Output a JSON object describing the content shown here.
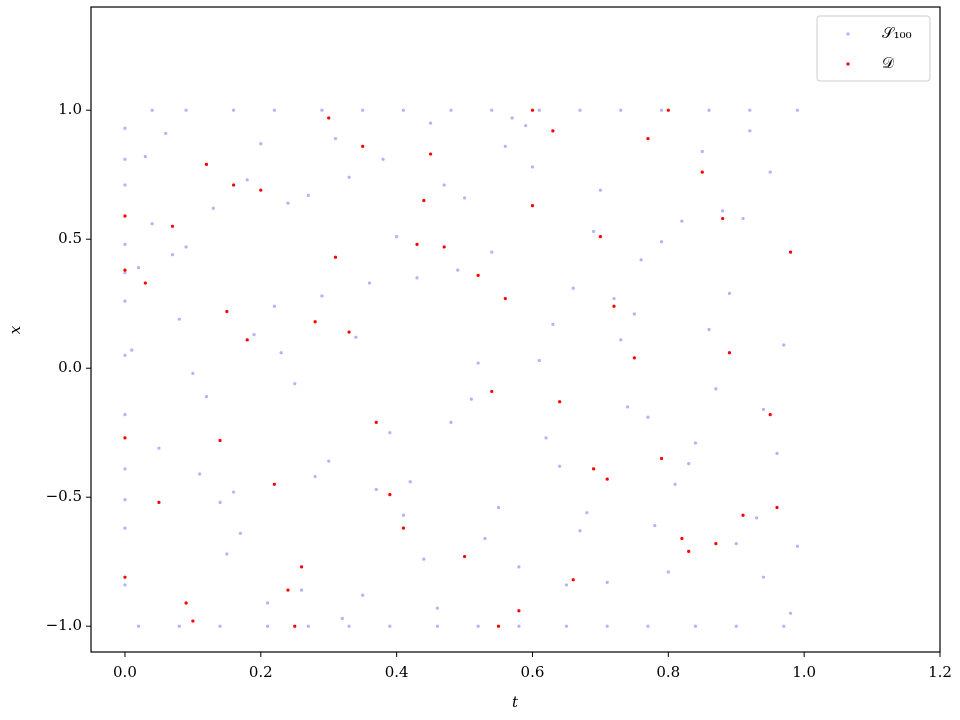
{
  "chart_data": {
    "type": "scatter",
    "xlabel": "t",
    "ylabel": "x",
    "xlim": [
      -0.05,
      1.2
    ],
    "ylim": [
      -1.1,
      1.4
    ],
    "xticks": [
      {
        "value": 0,
        "label": "0.0"
      },
      0.2,
      0.4,
      0.6,
      0.8,
      {
        "value": 1,
        "label": "1.0"
      },
      1.2
    ],
    "yticks": [
      {
        "value": -1,
        "label": "−1.0"
      },
      {
        "value": -0.5,
        "label": "−0.5"
      },
      {
        "value": 0,
        "label": "0.0"
      },
      0.5,
      {
        "value": 1,
        "label": "1.0"
      }
    ],
    "legend": "upper right",
    "series": [
      {
        "name": "𝒮₁₀₀",
        "color": "#0000ff",
        "alpha": 0.3,
        "x": [
          0.03,
          0.11,
          0.19,
          0.27,
          0.35,
          0.43,
          0.51,
          0.59,
          0.67,
          0.75,
          0.83,
          0.91,
          0.98,
          0.07,
          0.15,
          0.23,
          0.31,
          0.39,
          0.47,
          0.55,
          0.63,
          0.71,
          0.79,
          0.87,
          0.95,
          0.05,
          0.13,
          0.21,
          0.29,
          0.37,
          0.45,
          0.53,
          0.61,
          0.69,
          0.77,
          0.85,
          0.93,
          0.02,
          0.1,
          0.18,
          0.26,
          0.34,
          0.42,
          0.5,
          0.58,
          0.66,
          0.74,
          0.82,
          0.9,
          0.97,
          0.06,
          0.14,
          0.22,
          0.3,
          0.38,
          0.46,
          0.54,
          0.62,
          0.7,
          0.78,
          0.86,
          0.94,
          0.04,
          0.12,
          0.2,
          0.28,
          0.36,
          0.44,
          0.52,
          0.6,
          0.68,
          0.76,
          0.84,
          0.92,
          0.99,
          0.08,
          0.16,
          0.24,
          0.32,
          0.4,
          0.48,
          0.56,
          0.64,
          0.72,
          0.8,
          0.88,
          0.96,
          0.01,
          0.09,
          0.17,
          0.25,
          0.33,
          0.41,
          0.49,
          0.57,
          0.65,
          0.73,
          0.81,
          0.89,
          0.94,
          0.04,
          0.09,
          0.16,
          0.22,
          0.29,
          0.35,
          0.41,
          0.48,
          0.54,
          0.61,
          0.67,
          0.73,
          0.79,
          0.86,
          0.92,
          0.99,
          0.02,
          0.08,
          0.14,
          0.21,
          0.27,
          0.33,
          0.39,
          0.46,
          0.52,
          0.58,
          0.65,
          0.71,
          0.77,
          0.84,
          0.9,
          0.97,
          0,
          0,
          0,
          0,
          0,
          0,
          0,
          0,
          0,
          0,
          0,
          0
        ],
        "y": [
          0.82,
          -0.41,
          0.13,
          0.67,
          -0.88,
          0.35,
          -0.12,
          0.94,
          -0.63,
          0.21,
          -0.37,
          0.58,
          -0.95,
          0.44,
          -0.72,
          0.06,
          0.89,
          -0.25,
          0.71,
          -0.54,
          0.17,
          -0.83,
          0.49,
          -0.08,
          0.76,
          -0.31,
          0.62,
          -0.91,
          0.28,
          -0.47,
          0.95,
          -0.66,
          0.03,
          0.53,
          -0.19,
          0.84,
          -0.58,
          0.39,
          -0.02,
          0.73,
          -0.86,
          0.12,
          -0.44,
          0.66,
          -0.77,
          0.31,
          -0.15,
          0.57,
          -0.68,
          0.09,
          0.91,
          -0.52,
          0.24,
          -0.36,
          0.81,
          -0.93,
          0.45,
          -0.27,
          0.69,
          -0.61,
          0.15,
          -0.81,
          0.56,
          -0.11,
          0.87,
          -0.42,
          0.33,
          -0.74,
          0.02,
          0.78,
          -0.56,
          0.42,
          -0.29,
          0.92,
          -0.69,
          0.19,
          -0.48,
          0.64,
          -0.97,
          0.51,
          -0.21,
          0.86,
          -0.38,
          0.27,
          -0.79,
          0.61,
          -0.33,
          0.07,
          0.47,
          -0.64,
          -0.06,
          0.74,
          -0.57,
          0.38,
          0.97,
          -0.84,
          0.11,
          -0.45,
          0.29,
          -0.16,
          1,
          1,
          1,
          1,
          1,
          1,
          1,
          1,
          1,
          1,
          1,
          1,
          1,
          1,
          1,
          1,
          -1,
          -1,
          -1,
          -1,
          -1,
          -1,
          -1,
          -1,
          -1,
          -1,
          -1,
          -1,
          -1,
          -1,
          -1,
          -1,
          0.93,
          0.71,
          0.48,
          0.26,
          0.05,
          -0.18,
          -0.39,
          -0.62,
          -0.84,
          0.81,
          0.37,
          -0.51
        ]
      },
      {
        "name": "𝒟",
        "color": "#ff0000",
        "alpha": 1,
        "x": [
          0.05,
          0.12,
          0.18,
          0.24,
          0.31,
          0.37,
          0.44,
          0.5,
          0.56,
          0.63,
          0.69,
          0.75,
          0.82,
          0.88,
          0.95,
          0.03,
          0.09,
          0.16,
          0.22,
          0.28,
          0.35,
          0.41,
          0.47,
          0.54,
          0.6,
          0.66,
          0.72,
          0.79,
          0.85,
          0.91,
          0.98,
          0.07,
          0.14,
          0.2,
          0.26,
          0.33,
          0.39,
          0.45,
          0.52,
          0.58,
          0.64,
          0.7,
          0.77,
          0.83,
          0.89,
          0.96,
          0.1,
          0.3,
          0.55,
          0.8,
          0,
          0,
          0,
          0,
          0.25,
          0.6,
          0.43,
          0.71,
          0.15,
          0.87
        ],
        "y": [
          -0.52,
          0.79,
          0.11,
          -0.86,
          0.43,
          -0.21,
          0.65,
          -0.73,
          0.27,
          0.92,
          -0.39,
          0.04,
          -0.66,
          0.58,
          -0.18,
          0.33,
          -0.91,
          0.71,
          -0.45,
          0.18,
          0.86,
          -0.62,
          0.47,
          -0.09,
          0.63,
          -0.82,
          0.24,
          -0.35,
          0.76,
          -0.57,
          0.45,
          0.55,
          -0.28,
          0.69,
          -0.77,
          0.14,
          -0.49,
          0.83,
          0.36,
          -0.94,
          -0.13,
          0.51,
          0.89,
          -0.71,
          0.06,
          -0.54,
          -0.98,
          0.97,
          -1,
          1,
          0.59,
          -0.81,
          0.38,
          -0.27,
          -1,
          1,
          0.48,
          -0.43,
          0.22,
          -0.68
        ]
      }
    ]
  }
}
